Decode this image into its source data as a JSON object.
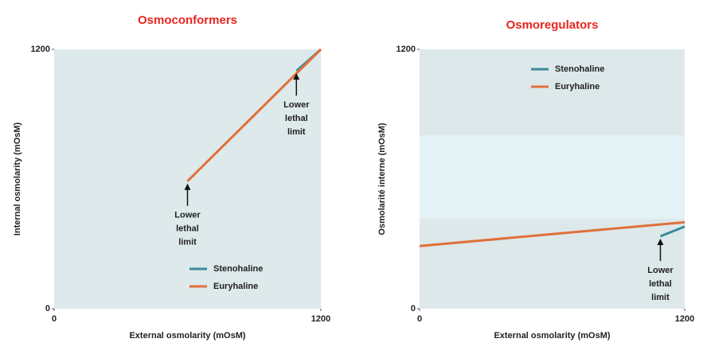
{
  "chart_data": [
    {
      "type": "line",
      "title": "Osmoconformers",
      "x_label": "External osmolarity (mOsM)",
      "y_label": "Internal osmolarity (mOsM)",
      "xlim": [
        0,
        1200
      ],
      "ylim": [
        0,
        1200
      ],
      "xticks": [
        0,
        1200
      ],
      "yticks": [
        0,
        1200
      ],
      "legend": "lower right",
      "series": [
        {
          "name": "Stenohaline",
          "color": "#3a8a9c",
          "x": [
            1090,
            1200
          ],
          "values": [
            1100,
            1200
          ]
        },
        {
          "name": "Euryhaline",
          "color": "#e0703a",
          "x": [
            600,
            1200
          ],
          "values": [
            590,
            1200
          ]
        }
      ],
      "annotations": [
        {
          "text": "Lower lethal limit",
          "x": 600,
          "y": 590
        },
        {
          "text": "Lower lethal limit",
          "x": 1090,
          "y": 1100
        }
      ]
    },
    {
      "type": "line",
      "title": "Osmoregulators",
      "x_label": "External osmolarity (mOsM)",
      "y_label": "Osmolarité interne (mOsM)",
      "xlim": [
        0,
        1200
      ],
      "ylim": [
        0,
        1200
      ],
      "xticks": [
        0,
        1200
      ],
      "yticks": [
        0,
        1200
      ],
      "legend": "upper left",
      "series": [
        {
          "name": "Stenohaline",
          "color": "#3a8a9c",
          "x": [
            1090,
            1200
          ],
          "values": [
            335,
            380
          ]
        },
        {
          "name": "Euryhaline",
          "color": "#e0703a",
          "x": [
            0,
            1200
          ],
          "values": [
            290,
            400
          ]
        }
      ],
      "annotations": [
        {
          "text": "Lower lethal limit",
          "x": 1090,
          "y": 335
        }
      ]
    }
  ]
}
